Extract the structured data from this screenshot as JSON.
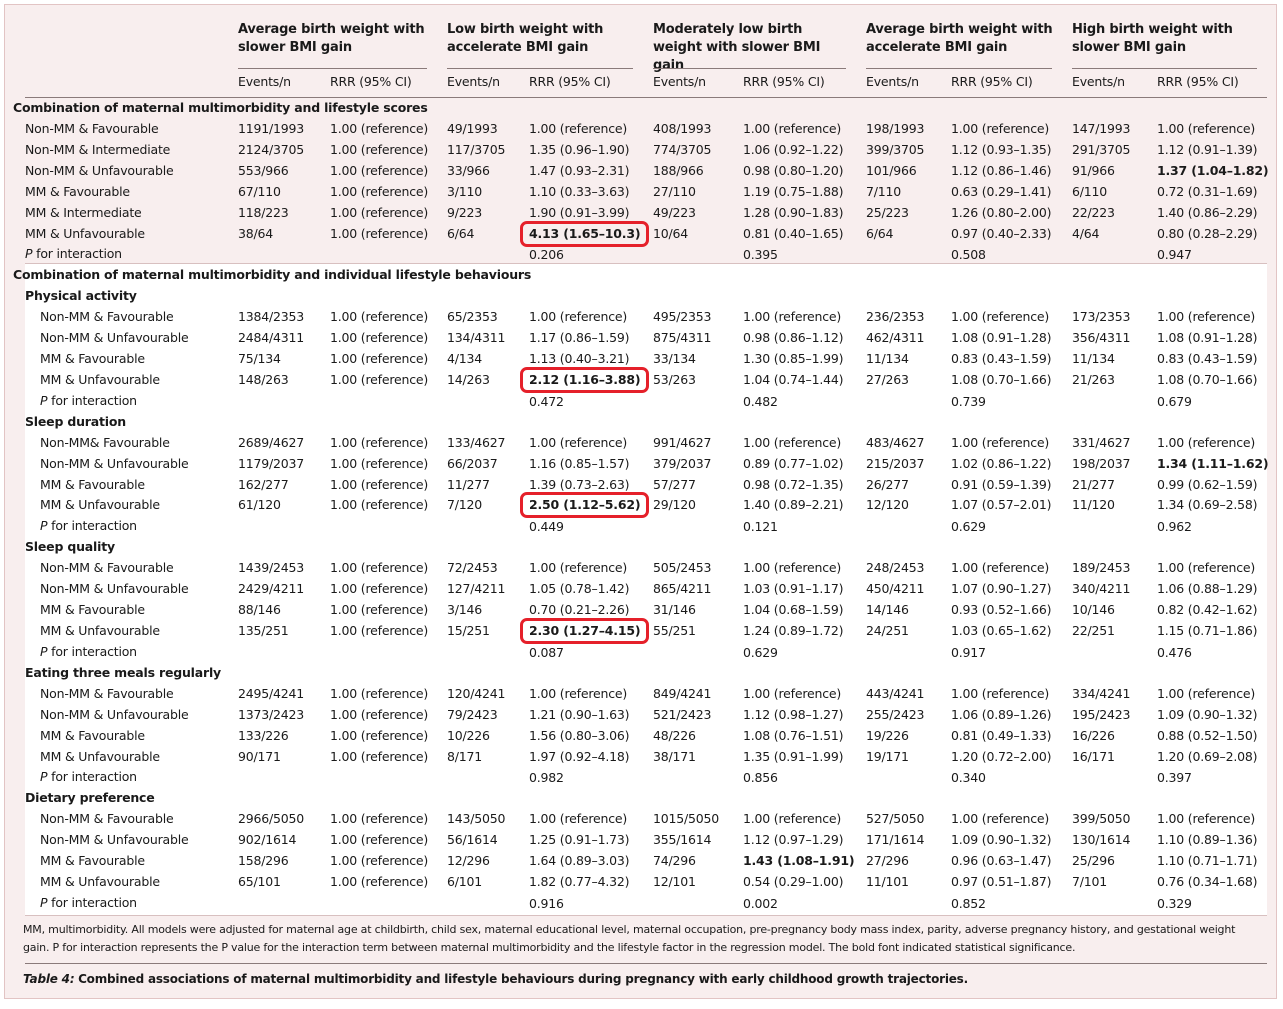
{
  "table": {
    "groups": [
      "Average birth weight with slower BMI gain",
      "Low birth weight with accelerate BMI gain",
      "Moderately low birth weight with slower BMI gain",
      "Average birth weight with accelerate BMI gain",
      "High birth weight with slower BMI gain"
    ],
    "subheaders": [
      "Events/n",
      "RRR (95% CI)"
    ],
    "sections": [
      {
        "title": "Combination of maternal multimorbidity and lifestyle scores",
        "rows": [
          {
            "label": "Non-MM & Favourable",
            "cells": [
              "1191/1993",
              "1.00 (reference)",
              "49/1993",
              "1.00 (reference)",
              "408/1993",
              "1.00 (reference)",
              "198/1993",
              "1.00 (reference)",
              "147/1993",
              "1.00 (reference)"
            ]
          },
          {
            "label": "Non-MM & Intermediate",
            "cells": [
              "2124/3705",
              "1.00 (reference)",
              "117/3705",
              "1.35 (0.96–1.90)",
              "774/3705",
              "1.06 (0.92–1.22)",
              "399/3705",
              "1.12 (0.93–1.35)",
              "291/3705",
              "1.12 (0.91–1.39)"
            ]
          },
          {
            "label": "Non-MM & Unfavourable",
            "cells": [
              "553/966",
              "1.00 (reference)",
              "33/966",
              "1.47 (0.93–2.31)",
              "188/966",
              "0.98 (0.80–1.20)",
              "101/966",
              "1.12 (0.86–1.46)",
              "91/966",
              "1.37 (1.04–1.82)"
            ],
            "bold": [
              9
            ]
          },
          {
            "label": "MM & Favourable",
            "cells": [
              "67/110",
              "1.00 (reference)",
              "3/110",
              "1.10 (0.33–3.63)",
              "27/110",
              "1.19 (0.75–1.88)",
              "7/110",
              "0.63 (0.29–1.41)",
              "6/110",
              "0.72 (0.31–1.69)"
            ]
          },
          {
            "label": "MM & Intermediate",
            "cells": [
              "118/223",
              "1.00 (reference)",
              "9/223",
              "1.90 (0.91–3.99)",
              "49/223",
              "1.28 (0.90–1.83)",
              "25/223",
              "1.26 (0.80–2.00)",
              "22/223",
              "1.40 (0.86–2.29)"
            ]
          },
          {
            "label": "MM & Unfavourable",
            "cells": [
              "38/64",
              "1.00 (reference)",
              "6/64",
              "4.13 (1.65–10.3)",
              "10/64",
              "0.81 (0.40–1.65)",
              "6/64",
              "0.97 (0.40–2.33)",
              "4/64",
              "0.80 (0.28–2.29)"
            ],
            "bold": [
              3
            ],
            "boxed": [
              3
            ]
          }
        ],
        "p": {
          "label": "P for interaction",
          "values": [
            "0.206",
            "0.395",
            "0.508",
            "0.947"
          ]
        }
      },
      {
        "title": "Combination of maternal multimorbidity and individual lifestyle behaviours",
        "subsections": [
          {
            "title": "Physical activity",
            "rows": [
              {
                "label": "Non-MM & Favourable",
                "cells": [
                  "1384/2353",
                  "1.00 (reference)",
                  "65/2353",
                  "1.00 (reference)",
                  "495/2353",
                  "1.00 (reference)",
                  "236/2353",
                  "1.00 (reference)",
                  "173/2353",
                  "1.00 (reference)"
                ]
              },
              {
                "label": "Non-MM & Unfavourable",
                "cells": [
                  "2484/4311",
                  "1.00 (reference)",
                  "134/4311",
                  "1.17 (0.86–1.59)",
                  "875/4311",
                  "0.98 (0.86–1.12)",
                  "462/4311",
                  "1.08 (0.91–1.28)",
                  "356/4311",
                  "1.08 (0.91–1.28)"
                ]
              },
              {
                "label": "MM & Favourable",
                "cells": [
                  "75/134",
                  "1.00 (reference)",
                  "4/134",
                  "1.13 (0.40–3.21)",
                  "33/134",
                  "1.30 (0.85–1.99)",
                  "11/134",
                  "0.83 (0.43–1.59)",
                  "11/134",
                  "0.83 (0.43–1.59)"
                ]
              },
              {
                "label": "MM & Unfavourable",
                "cells": [
                  "148/263",
                  "1.00 (reference)",
                  "14/263",
                  "2.12 (1.16–3.88)",
                  "53/263",
                  "1.04 (0.74–1.44)",
                  "27/263",
                  "1.08 (0.70–1.66)",
                  "21/263",
                  "1.08 (0.70–1.66)"
                ],
                "bold": [
                  3
                ],
                "boxed": [
                  3
                ]
              }
            ],
            "p": {
              "label": "P for interaction",
              "values": [
                "0.472",
                "0.482",
                "0.739",
                "0.679"
              ]
            }
          },
          {
            "title": "Sleep duration",
            "rows": [
              {
                "label": "Non-MM& Favourable",
                "cells": [
                  "2689/4627",
                  "1.00 (reference)",
                  "133/4627",
                  "1.00 (reference)",
                  "991/4627",
                  "1.00 (reference)",
                  "483/4627",
                  "1.00 (reference)",
                  "331/4627",
                  "1.00 (reference)"
                ]
              },
              {
                "label": "Non-MM & Unfavourable",
                "cells": [
                  "1179/2037",
                  "1.00 (reference)",
                  "66/2037",
                  "1.16 (0.85–1.57)",
                  "379/2037",
                  "0.89 (0.77–1.02)",
                  "215/2037",
                  "1.02 (0.86–1.22)",
                  "198/2037",
                  "1.34 (1.11–1.62)"
                ],
                "bold": [
                  9
                ]
              },
              {
                "label": "MM & Favourable",
                "cells": [
                  "162/277",
                  "1.00 (reference)",
                  "11/277",
                  "1.39 (0.73–2.63)",
                  "57/277",
                  "0.98 (0.72–1.35)",
                  "26/277",
                  "0.91 (0.59–1.39)",
                  "21/277",
                  "0.99 (0.62–1.59)"
                ]
              },
              {
                "label": "MM & Unfavourable",
                "cells": [
                  "61/120",
                  "1.00 (reference)",
                  "7/120",
                  "2.50 (1.12–5.62)",
                  "29/120",
                  "1.40 (0.89–2.21)",
                  "12/120",
                  "1.07 (0.57–2.01)",
                  "11/120",
                  "1.34 (0.69–2.58)"
                ],
                "bold": [
                  3
                ],
                "boxed": [
                  3
                ]
              }
            ],
            "p": {
              "label": "P for interaction",
              "values": [
                "0.449",
                "0.121",
                "0.629",
                "0.962"
              ]
            }
          },
          {
            "title": "Sleep quality",
            "rows": [
              {
                "label": "Non-MM & Favourable",
                "cells": [
                  "1439/2453",
                  "1.00 (reference)",
                  "72/2453",
                  "1.00 (reference)",
                  "505/2453",
                  "1.00 (reference)",
                  "248/2453",
                  "1.00 (reference)",
                  "189/2453",
                  "1.00 (reference)"
                ]
              },
              {
                "label": "Non-MM & Unfavourable",
                "cells": [
                  "2429/4211",
                  "1.00 (reference)",
                  "127/4211",
                  "1.05 (0.78–1.42)",
                  "865/4211",
                  "1.03 (0.91–1.17)",
                  "450/4211",
                  "1.07 (0.90–1.27)",
                  "340/4211",
                  "1.06 (0.88–1.29)"
                ]
              },
              {
                "label": "MM & Favourable",
                "cells": [
                  "88/146",
                  "1.00 (reference)",
                  "3/146",
                  "0.70 (0.21–2.26)",
                  "31/146",
                  "1.04 (0.68–1.59)",
                  "14/146",
                  "0.93 (0.52–1.66)",
                  "10/146",
                  "0.82 (0.42–1.62)"
                ]
              },
              {
                "label": "MM & Unfavourable",
                "cells": [
                  "135/251",
                  "1.00 (reference)",
                  "15/251",
                  "2.30 (1.27–4.15)",
                  "55/251",
                  "1.24 (0.89–1.72)",
                  "24/251",
                  "1.03 (0.65–1.62)",
                  "22/251",
                  "1.15 (0.71–1.86)"
                ],
                "bold": [
                  3
                ],
                "boxed": [
                  3
                ]
              }
            ],
            "p": {
              "label": "P for interaction",
              "values": [
                "0.087",
                "0.629",
                "0.917",
                "0.476"
              ]
            }
          },
          {
            "title": "Eating three meals regularly",
            "rows": [
              {
                "label": "Non-MM & Favourable",
                "cells": [
                  "2495/4241",
                  "1.00 (reference)",
                  "120/4241",
                  "1.00 (reference)",
                  "849/4241",
                  "1.00 (reference)",
                  "443/4241",
                  "1.00 (reference)",
                  "334/4241",
                  "1.00 (reference)"
                ]
              },
              {
                "label": "Non-MM & Unfavourable",
                "cells": [
                  "1373/2423",
                  "1.00 (reference)",
                  "79/2423",
                  "1.21 (0.90–1.63)",
                  "521/2423",
                  "1.12 (0.98–1.27)",
                  "255/2423",
                  "1.06 (0.89–1.26)",
                  "195/2423",
                  "1.09 (0.90–1.32)"
                ]
              },
              {
                "label": "MM & Favourable",
                "cells": [
                  "133/226",
                  "1.00 (reference)",
                  "10/226",
                  "1.56 (0.80–3.06)",
                  "48/226",
                  "1.08 (0.76–1.51)",
                  "19/226",
                  "0.81 (0.49–1.33)",
                  "16/226",
                  "0.88 (0.52–1.50)"
                ]
              },
              {
                "label": "MM & Unfavourable",
                "cells": [
                  "90/171",
                  "1.00 (reference)",
                  "8/171",
                  "1.97 (0.92–4.18)",
                  "38/171",
                  "1.35 (0.91–1.99)",
                  "19/171",
                  "1.20 (0.72–2.00)",
                  "16/171",
                  "1.20 (0.69–2.08)"
                ]
              }
            ],
            "p": {
              "label": "P for interaction",
              "values": [
                "0.982",
                "0.856",
                "0.340",
                "0.397"
              ]
            }
          },
          {
            "title": "Dietary preference",
            "rows": [
              {
                "label": "Non-MM & Favourable",
                "cells": [
                  "2966/5050",
                  "1.00 (reference)",
                  "143/5050",
                  "1.00 (reference)",
                  "1015/5050",
                  "1.00 (reference)",
                  "527/5050",
                  "1.00 (reference)",
                  "399/5050",
                  "1.00 (reference)"
                ]
              },
              {
                "label": "Non-MM & Unfavourable",
                "cells": [
                  "902/1614",
                  "1.00 (reference)",
                  "56/1614",
                  "1.25 (0.91–1.73)",
                  "355/1614",
                  "1.12 (0.97–1.29)",
                  "171/1614",
                  "1.09 (0.90–1.32)",
                  "130/1614",
                  "1.10 (0.89–1.36)"
                ]
              },
              {
                "label": "MM & Favourable",
                "cells": [
                  "158/296",
                  "1.00 (reference)",
                  "12/296",
                  "1.64 (0.89–3.03)",
                  "74/296",
                  "1.43 (1.08–1.91)",
                  "27/296",
                  "0.96 (0.63–1.47)",
                  "25/296",
                  "1.10 (0.71–1.71)"
                ],
                "bold": [
                  5
                ]
              },
              {
                "label": "MM & Unfavourable",
                "cells": [
                  "65/101",
                  "1.00 (reference)",
                  "6/101",
                  "1.82 (0.77–4.32)",
                  "12/101",
                  "0.54 (0.29–1.00)",
                  "11/101",
                  "0.97 (0.51–1.87)",
                  "7/101",
                  "0.76 (0.34–1.68)"
                ]
              }
            ],
            "p": {
              "label": "P for interaction",
              "values": [
                "0.916",
                "0.002",
                "0.852",
                "0.329"
              ]
            }
          }
        ]
      }
    ],
    "footnote": "MM, multimorbidity. All models were adjusted for maternal age at childbirth, child sex, maternal educational level, maternal occupation, pre-pregnancy body mass index, parity, adverse pregnancy history, and gestational weight gain. P for interaction represents the P value for the interaction term between maternal multimorbidity and the lifestyle factor in the regression model. The bold font indicated statistical significance.",
    "caption": {
      "label": "Table 4:",
      "text": "Combined associations of maternal multimorbidity and lifestyle behaviours during pregnancy with early childhood growth trajectories."
    }
  }
}
